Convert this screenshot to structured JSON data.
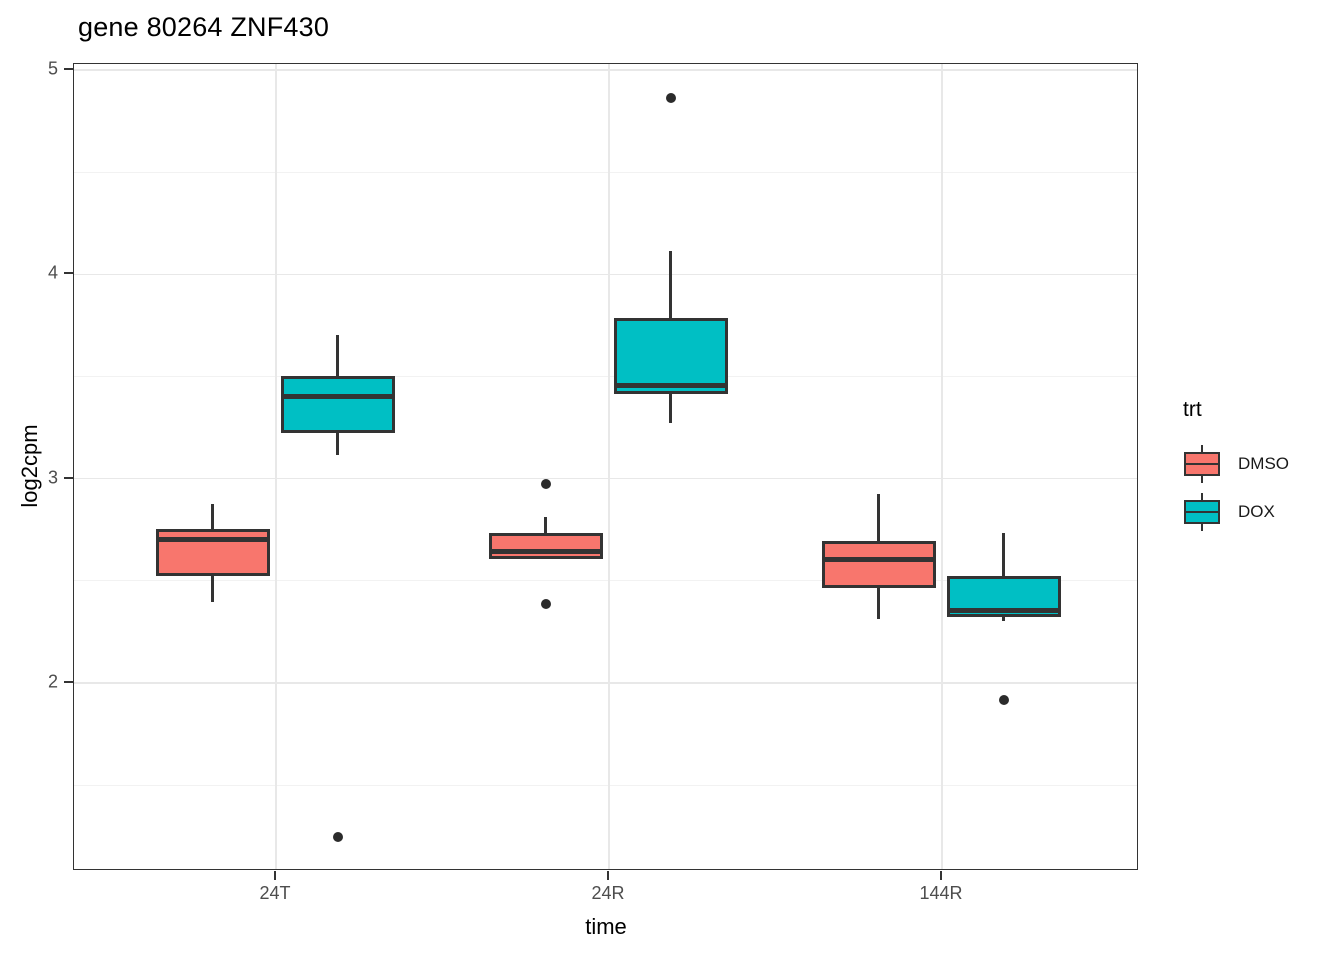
{
  "chart_data": {
    "type": "boxplot",
    "title": "gene 80264 ZNF430",
    "xlabel": "time",
    "ylabel": "log2cpm",
    "categories": [
      "24T",
      "24R",
      "144R"
    ],
    "y_ticks": [
      5,
      4,
      3,
      2
    ],
    "y_minor_ticks": [
      4.5,
      3.5,
      2.5,
      1.5
    ],
    "ylim": [
      1.08,
      5.03
    ],
    "grid": true,
    "legend_position": "right",
    "legend": {
      "title": "trt",
      "entries": [
        {
          "label": "DMSO",
          "color": "#F8766D"
        },
        {
          "label": "DOX",
          "color": "#00BFC4"
        }
      ]
    },
    "series": [
      {
        "name": "DMSO",
        "color": "#F8766D",
        "boxes": [
          {
            "category": "24T",
            "whisker_low": 2.39,
            "q1": 2.52,
            "median": 2.7,
            "q3": 2.75,
            "whisker_high": 2.87,
            "outliers": []
          },
          {
            "category": "24R",
            "whisker_low": 2.6,
            "q1": 2.6,
            "median": 2.64,
            "q3": 2.73,
            "whisker_high": 2.81,
            "outliers": [
              2.97,
              2.38
            ]
          },
          {
            "category": "144R",
            "whisker_low": 2.31,
            "q1": 2.46,
            "median": 2.6,
            "q3": 2.69,
            "whisker_high": 2.92,
            "outliers": []
          }
        ]
      },
      {
        "name": "DOX",
        "color": "#00BFC4",
        "boxes": [
          {
            "category": "24T",
            "whisker_low": 3.11,
            "q1": 3.22,
            "median": 3.4,
            "q3": 3.5,
            "whisker_high": 3.7,
            "outliers": [
              1.24
            ]
          },
          {
            "category": "24R",
            "whisker_low": 3.27,
            "q1": 3.41,
            "median": 3.45,
            "q3": 3.78,
            "whisker_high": 4.11,
            "outliers": [
              4.86
            ]
          },
          {
            "category": "144R",
            "whisker_low": 2.3,
            "q1": 2.32,
            "median": 2.35,
            "q3": 2.52,
            "whisker_high": 2.73,
            "outliers": [
              1.91
            ]
          }
        ]
      }
    ],
    "colors": {
      "box_outline": "#333333",
      "outlier": "#2b2b2b",
      "grid_major": "#E8E8E8",
      "grid_minor": "#F2F2F2",
      "axis_text": "#4D4D4D",
      "panel_border": "#333333"
    }
  }
}
